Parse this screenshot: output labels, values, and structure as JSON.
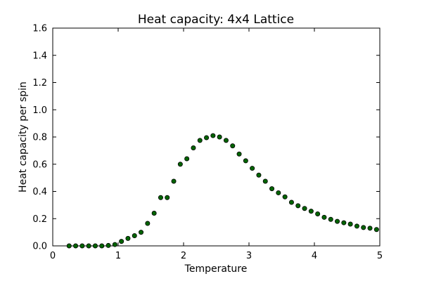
{
  "chart_data": {
    "type": "scatter",
    "title": "Heat capacity: 4x4 Lattice",
    "xlabel": "Temperature",
    "ylabel": "Heat capacity per spin",
    "xlim": [
      0,
      5
    ],
    "ylim": [
      0,
      1.6
    ],
    "xticks": [
      "0",
      "1",
      "2",
      "3",
      "4",
      "5"
    ],
    "yticks": [
      "0.0",
      "0.2",
      "0.4",
      "0.6",
      "0.8",
      "1.0",
      "1.2",
      "1.4",
      "1.6"
    ],
    "grid": false,
    "marker_fill": "#006400",
    "marker_edge": "#000000",
    "series": [
      {
        "x": [
          0.25,
          0.35,
          0.45,
          0.55,
          0.65,
          0.75,
          0.85,
          0.95,
          1.05,
          1.15,
          1.25,
          1.35,
          1.45,
          1.55,
          1.65,
          1.75,
          1.85,
          1.95,
          2.05,
          2.15,
          2.25,
          2.35,
          2.45,
          2.55,
          2.65,
          2.75,
          2.85,
          2.95,
          3.05,
          3.15,
          3.25,
          3.35,
          3.45,
          3.55,
          3.65,
          3.75,
          3.85,
          3.95,
          4.05,
          4.15,
          4.25,
          4.35,
          4.45,
          4.55,
          4.65,
          4.75,
          4.85,
          4.95
        ],
        "y": [
          0.0,
          0.0,
          0.0,
          0.0,
          0.0,
          0.0,
          0.003,
          0.01,
          0.033,
          0.055,
          0.075,
          0.1,
          0.165,
          0.24,
          0.355,
          0.355,
          0.475,
          0.6,
          0.64,
          0.72,
          0.775,
          0.795,
          0.81,
          0.8,
          0.775,
          0.735,
          0.675,
          0.625,
          0.57,
          0.52,
          0.475,
          0.42,
          0.39,
          0.36,
          0.32,
          0.295,
          0.275,
          0.255,
          0.235,
          0.21,
          0.195,
          0.18,
          0.17,
          0.16,
          0.145,
          0.135,
          0.13,
          0.12
        ]
      }
    ]
  }
}
